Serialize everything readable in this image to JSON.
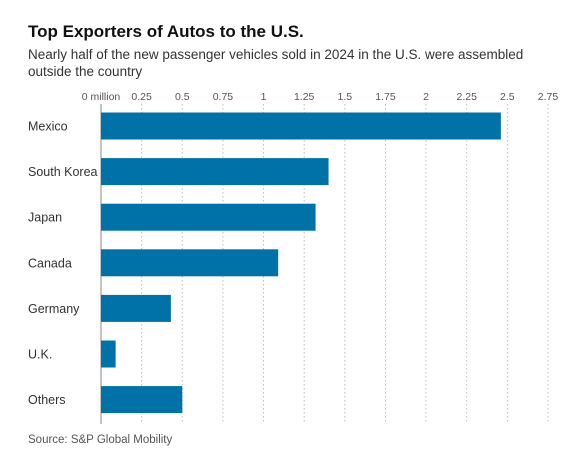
{
  "title": "Top Exporters of Autos to the U.S.",
  "subtitle": "Nearly half of the new passenger vehicles sold in 2024 in the U.S. were assembled outside the country",
  "source": "Source: S&P Global Mobility",
  "colors": {
    "bar": "#0072a8",
    "grid": "#bdbdbd",
    "axis": "#888888"
  },
  "chart_data": {
    "type": "bar",
    "orientation": "horizontal",
    "categories": [
      "Mexico",
      "South Korea",
      "Japan",
      "Canada",
      "Germany",
      "U.K.",
      "Others"
    ],
    "values": [
      2.46,
      1.4,
      1.32,
      1.09,
      0.43,
      0.09,
      0.5
    ],
    "xlim": [
      0,
      2.75
    ],
    "x_ticks": [
      0,
      0.25,
      0.5,
      0.75,
      1,
      1.25,
      1.5,
      1.75,
      2,
      2.25,
      2.5,
      2.75
    ],
    "x_tick_labels": [
      "0 million",
      "0.25",
      "0.5",
      "0.75",
      "1",
      "1.25",
      "1.5",
      "1.75",
      "2",
      "2.25",
      "2.5",
      "2.75"
    ],
    "grid": true,
    "title": "Top Exporters of Autos to the U.S.",
    "xlabel": "",
    "ylabel": ""
  }
}
